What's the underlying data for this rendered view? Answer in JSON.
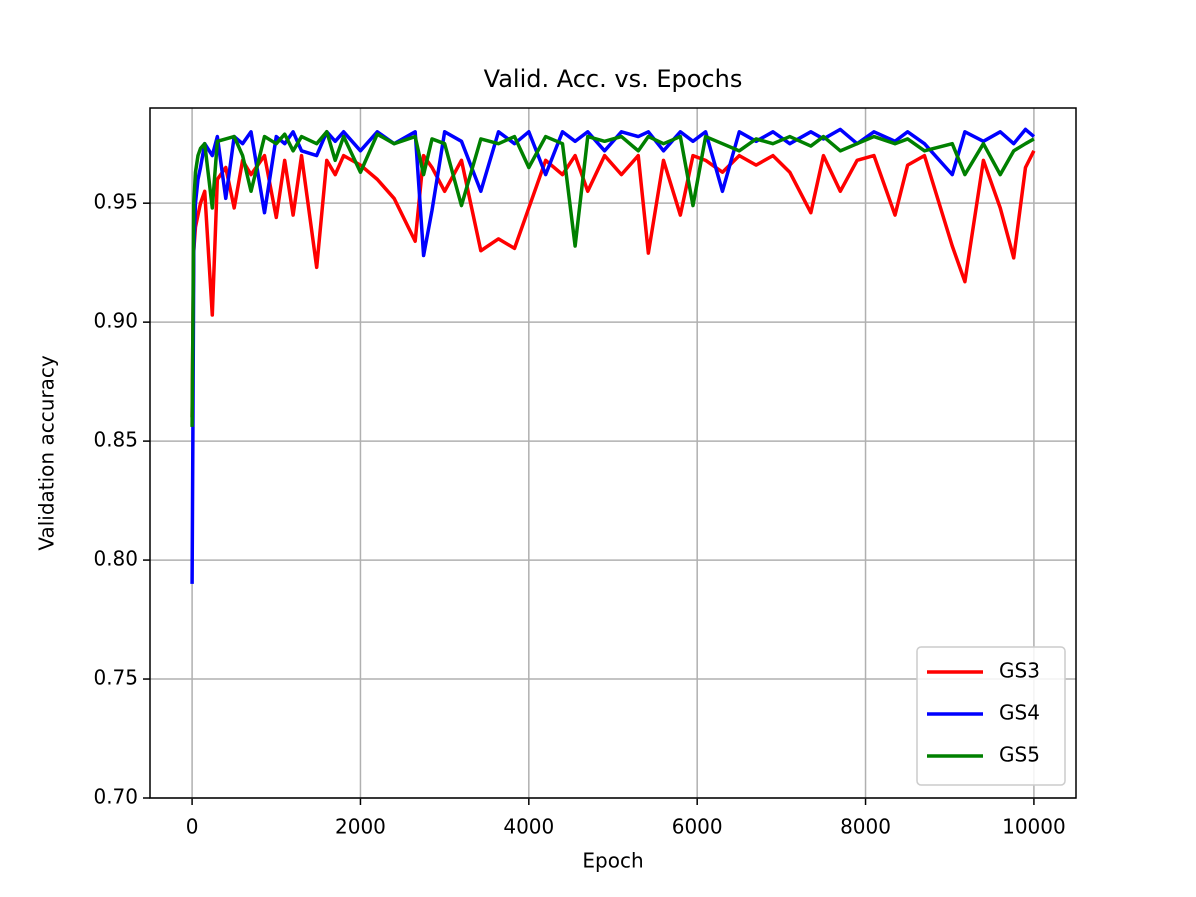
{
  "chart_data": {
    "type": "line",
    "title": "Valid. Acc. vs. Epochs",
    "x_label": "Epoch",
    "y_label": "Validation accuracy",
    "x": [
      0,
      10,
      20,
      40,
      70,
      100,
      150,
      240,
      300,
      400,
      500,
      600,
      700,
      860,
      1000,
      1100,
      1200,
      1300,
      1480,
      1600,
      1700,
      1800,
      2000,
      2200,
      2400,
      2650,
      2750,
      2850,
      3000,
      3200,
      3430,
      3640,
      3830,
      4000,
      4200,
      4400,
      4550,
      4700,
      4900,
      5100,
      5300,
      5420,
      5600,
      5800,
      5950,
      6100,
      6300,
      6500,
      6700,
      6900,
      7100,
      7350,
      7500,
      7700,
      7900,
      8100,
      8350,
      8500,
      8700,
      9030,
      9180,
      9400,
      9600,
      9760,
      9900,
      10000
    ],
    "series": [
      {
        "name": "GS3",
        "color": "#ff0000",
        "values": [
          0.86,
          0.9,
          0.93,
          0.94,
          0.945,
          0.95,
          0.955,
          0.903,
          0.96,
          0.965,
          0.948,
          0.968,
          0.962,
          0.97,
          0.944,
          0.968,
          0.945,
          0.97,
          0.923,
          0.968,
          0.962,
          0.97,
          0.966,
          0.96,
          0.952,
          0.934,
          0.97,
          0.965,
          0.955,
          0.968,
          0.93,
          0.935,
          0.931,
          0.948,
          0.968,
          0.962,
          0.97,
          0.955,
          0.97,
          0.962,
          0.97,
          0.929,
          0.968,
          0.945,
          0.97,
          0.968,
          0.963,
          0.97,
          0.966,
          0.97,
          0.963,
          0.946,
          0.97,
          0.955,
          0.968,
          0.97,
          0.945,
          0.966,
          0.97,
          0.932,
          0.917,
          0.968,
          0.948,
          0.927,
          0.965,
          0.972
        ]
      },
      {
        "name": "GS4",
        "color": "#0000ff",
        "values": [
          0.79,
          0.856,
          0.93,
          0.95,
          0.96,
          0.965,
          0.975,
          0.97,
          0.978,
          0.952,
          0.978,
          0.975,
          0.98,
          0.946,
          0.978,
          0.975,
          0.98,
          0.972,
          0.97,
          0.98,
          0.976,
          0.98,
          0.972,
          0.98,
          0.975,
          0.98,
          0.928,
          0.947,
          0.98,
          0.976,
          0.955,
          0.98,
          0.975,
          0.98,
          0.962,
          0.98,
          0.976,
          0.98,
          0.972,
          0.98,
          0.978,
          0.98,
          0.972,
          0.98,
          0.976,
          0.98,
          0.955,
          0.98,
          0.976,
          0.98,
          0.975,
          0.98,
          0.977,
          0.981,
          0.975,
          0.98,
          0.976,
          0.98,
          0.975,
          0.962,
          0.98,
          0.976,
          0.98,
          0.975,
          0.981,
          0.978
        ]
      },
      {
        "name": "GS5",
        "color": "#008000",
        "values": [
          0.856,
          0.9,
          0.95,
          0.963,
          0.97,
          0.973,
          0.975,
          0.948,
          0.976,
          0.977,
          0.978,
          0.97,
          0.955,
          0.978,
          0.975,
          0.979,
          0.972,
          0.978,
          0.975,
          0.98,
          0.968,
          0.978,
          0.963,
          0.979,
          0.975,
          0.978,
          0.962,
          0.977,
          0.975,
          0.949,
          0.977,
          0.975,
          0.978,
          0.965,
          0.978,
          0.975,
          0.932,
          0.978,
          0.976,
          0.978,
          0.972,
          0.978,
          0.975,
          0.978,
          0.949,
          0.978,
          0.975,
          0.972,
          0.977,
          0.975,
          0.978,
          0.974,
          0.978,
          0.972,
          0.975,
          0.978,
          0.975,
          0.977,
          0.972,
          0.975,
          0.962,
          0.975,
          0.962,
          0.972,
          0.975,
          0.977
        ]
      }
    ],
    "xlim": [
      -500,
      10500
    ],
    "ylim": [
      0.7,
      0.99
    ],
    "xticks": [
      0,
      2000,
      4000,
      6000,
      8000,
      10000
    ],
    "yticks": [
      {
        "value": 0.7,
        "label": "0.70"
      },
      0.75,
      {
        "value": 0.8,
        "label": "0.80"
      },
      0.85,
      {
        "value": 0.9,
        "label": "0.90"
      },
      0.95
    ],
    "grid": true,
    "legend": "lower right"
  }
}
